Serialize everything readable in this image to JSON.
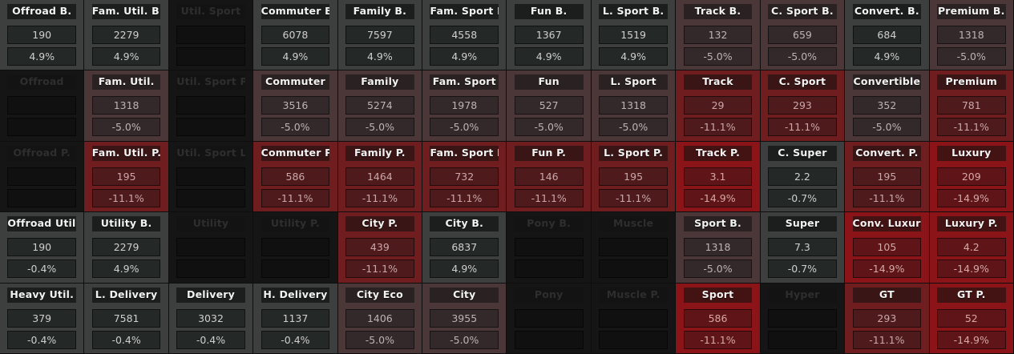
{
  "grid": {
    "rows": [
      [
        {
          "name": "Offroad B.",
          "value": "190",
          "change": "4.9%",
          "tone": "gray"
        },
        {
          "name": "Fam. Util. B.",
          "value": "2279",
          "change": "4.9%",
          "tone": "gray"
        },
        {
          "name": "Util. Sport",
          "value": "",
          "change": "",
          "tone": "black"
        },
        {
          "name": "Commuter B.",
          "value": "6078",
          "change": "4.9%",
          "tone": "gray"
        },
        {
          "name": "Family B.",
          "value": "7597",
          "change": "4.9%",
          "tone": "gray"
        },
        {
          "name": "Fam. Sport B.",
          "value": "4558",
          "change": "4.9%",
          "tone": "gray"
        },
        {
          "name": "Fun B.",
          "value": "1367",
          "change": "4.9%",
          "tone": "gray"
        },
        {
          "name": "L. Sport B.",
          "value": "1519",
          "change": "4.9%",
          "tone": "gray"
        },
        {
          "name": "Track B.",
          "value": "132",
          "change": "-5.0%",
          "tone": "mauve"
        },
        {
          "name": "C. Sport B.",
          "value": "659",
          "change": "-5.0%",
          "tone": "mauve"
        },
        {
          "name": "Convert. B.",
          "value": "684",
          "change": "4.9%",
          "tone": "gray"
        },
        {
          "name": "Premium B.",
          "value": "1318",
          "change": "-5.0%",
          "tone": "mauve"
        }
      ],
      [
        {
          "name": "Offroad",
          "value": "",
          "change": "",
          "tone": "black"
        },
        {
          "name": "Fam. Util.",
          "value": "1318",
          "change": "-5.0%",
          "tone": "mauve"
        },
        {
          "name": "Util. Sport P.",
          "value": "",
          "change": "",
          "tone": "black"
        },
        {
          "name": "Commuter",
          "value": "3516",
          "change": "-5.0%",
          "tone": "mauve"
        },
        {
          "name": "Family",
          "value": "5274",
          "change": "-5.0%",
          "tone": "mauve"
        },
        {
          "name": "Fam. Sport",
          "value": "1978",
          "change": "-5.0%",
          "tone": "mauve"
        },
        {
          "name": "Fun",
          "value": "527",
          "change": "-5.0%",
          "tone": "mauve"
        },
        {
          "name": "L. Sport",
          "value": "1318",
          "change": "-5.0%",
          "tone": "mauve"
        },
        {
          "name": "Track",
          "value": "29",
          "change": "-11.1%",
          "tone": "red"
        },
        {
          "name": "C. Sport",
          "value": "293",
          "change": "-11.1%",
          "tone": "red"
        },
        {
          "name": "Convertible",
          "value": "352",
          "change": "-5.0%",
          "tone": "mauve"
        },
        {
          "name": "Premium",
          "value": "781",
          "change": "-11.1%",
          "tone": "red"
        }
      ],
      [
        {
          "name": "Offroad P.",
          "value": "",
          "change": "",
          "tone": "black"
        },
        {
          "name": "Fam. Util. P.",
          "value": "195",
          "change": "-11.1%",
          "tone": "red"
        },
        {
          "name": "Util. Sport L.",
          "value": "",
          "change": "",
          "tone": "black"
        },
        {
          "name": "Commuter P.",
          "value": "586",
          "change": "-11.1%",
          "tone": "red"
        },
        {
          "name": "Family P.",
          "value": "1464",
          "change": "-11.1%",
          "tone": "red"
        },
        {
          "name": "Fam. Sport P.",
          "value": "732",
          "change": "-11.1%",
          "tone": "red"
        },
        {
          "name": "Fun P.",
          "value": "146",
          "change": "-11.1%",
          "tone": "red"
        },
        {
          "name": "L. Sport P.",
          "value": "195",
          "change": "-11.1%",
          "tone": "red"
        },
        {
          "name": "Track P.",
          "value": "3.1",
          "change": "-14.9%",
          "tone": "bright"
        },
        {
          "name": "C. Super",
          "value": "2.2",
          "change": "-0.7%",
          "tone": "gray"
        },
        {
          "name": "Convert. P.",
          "value": "195",
          "change": "-11.1%",
          "tone": "red"
        },
        {
          "name": "Luxury",
          "value": "209",
          "change": "-14.9%",
          "tone": "bright"
        }
      ],
      [
        {
          "name": "Offroad Util.",
          "value": "190",
          "change": "-0.4%",
          "tone": "gray"
        },
        {
          "name": "Utility B.",
          "value": "2279",
          "change": "4.9%",
          "tone": "gray"
        },
        {
          "name": "Utility",
          "value": "",
          "change": "",
          "tone": "black"
        },
        {
          "name": "Utility P.",
          "value": "",
          "change": "",
          "tone": "black"
        },
        {
          "name": "City P.",
          "value": "439",
          "change": "-11.1%",
          "tone": "red"
        },
        {
          "name": "City B.",
          "value": "6837",
          "change": "4.9%",
          "tone": "gray"
        },
        {
          "name": "Pony B.",
          "value": "",
          "change": "",
          "tone": "black"
        },
        {
          "name": "Muscle",
          "value": "",
          "change": "",
          "tone": "black"
        },
        {
          "name": "Sport B.",
          "value": "1318",
          "change": "-5.0%",
          "tone": "mauve"
        },
        {
          "name": "Super",
          "value": "7.3",
          "change": "-0.7%",
          "tone": "gray"
        },
        {
          "name": "Conv. Luxury",
          "value": "105",
          "change": "-14.9%",
          "tone": "bright"
        },
        {
          "name": "Luxury P.",
          "value": "4.2",
          "change": "-14.9%",
          "tone": "bright"
        }
      ],
      [
        {
          "name": "Heavy Util.",
          "value": "379",
          "change": "-0.4%",
          "tone": "gray"
        },
        {
          "name": "L. Delivery",
          "value": "7581",
          "change": "-0.4%",
          "tone": "gray"
        },
        {
          "name": "Delivery",
          "value": "3032",
          "change": "-0.4%",
          "tone": "gray"
        },
        {
          "name": "H. Delivery",
          "value": "1137",
          "change": "-0.4%",
          "tone": "gray"
        },
        {
          "name": "City Eco",
          "value": "1406",
          "change": "-5.0%",
          "tone": "mauve"
        },
        {
          "name": "City",
          "value": "3955",
          "change": "-5.0%",
          "tone": "mauve"
        },
        {
          "name": "Pony",
          "value": "",
          "change": "",
          "tone": "black"
        },
        {
          "name": "Muscle P.",
          "value": "",
          "change": "",
          "tone": "black"
        },
        {
          "name": "Sport",
          "value": "586",
          "change": "-11.1%",
          "tone": "bright"
        },
        {
          "name": "Hyper",
          "value": "",
          "change": "",
          "tone": "black"
        },
        {
          "name": "GT",
          "value": "293",
          "change": "-11.1%",
          "tone": "red"
        },
        {
          "name": "GT P.",
          "value": "52",
          "change": "-14.9%",
          "tone": "bright"
        }
      ]
    ]
  },
  "colors": {
    "gray": "#3d3f3e",
    "black": "#141514",
    "mauve": "#4b3738",
    "red": "#701d20",
    "bright": "#8a1417"
  }
}
